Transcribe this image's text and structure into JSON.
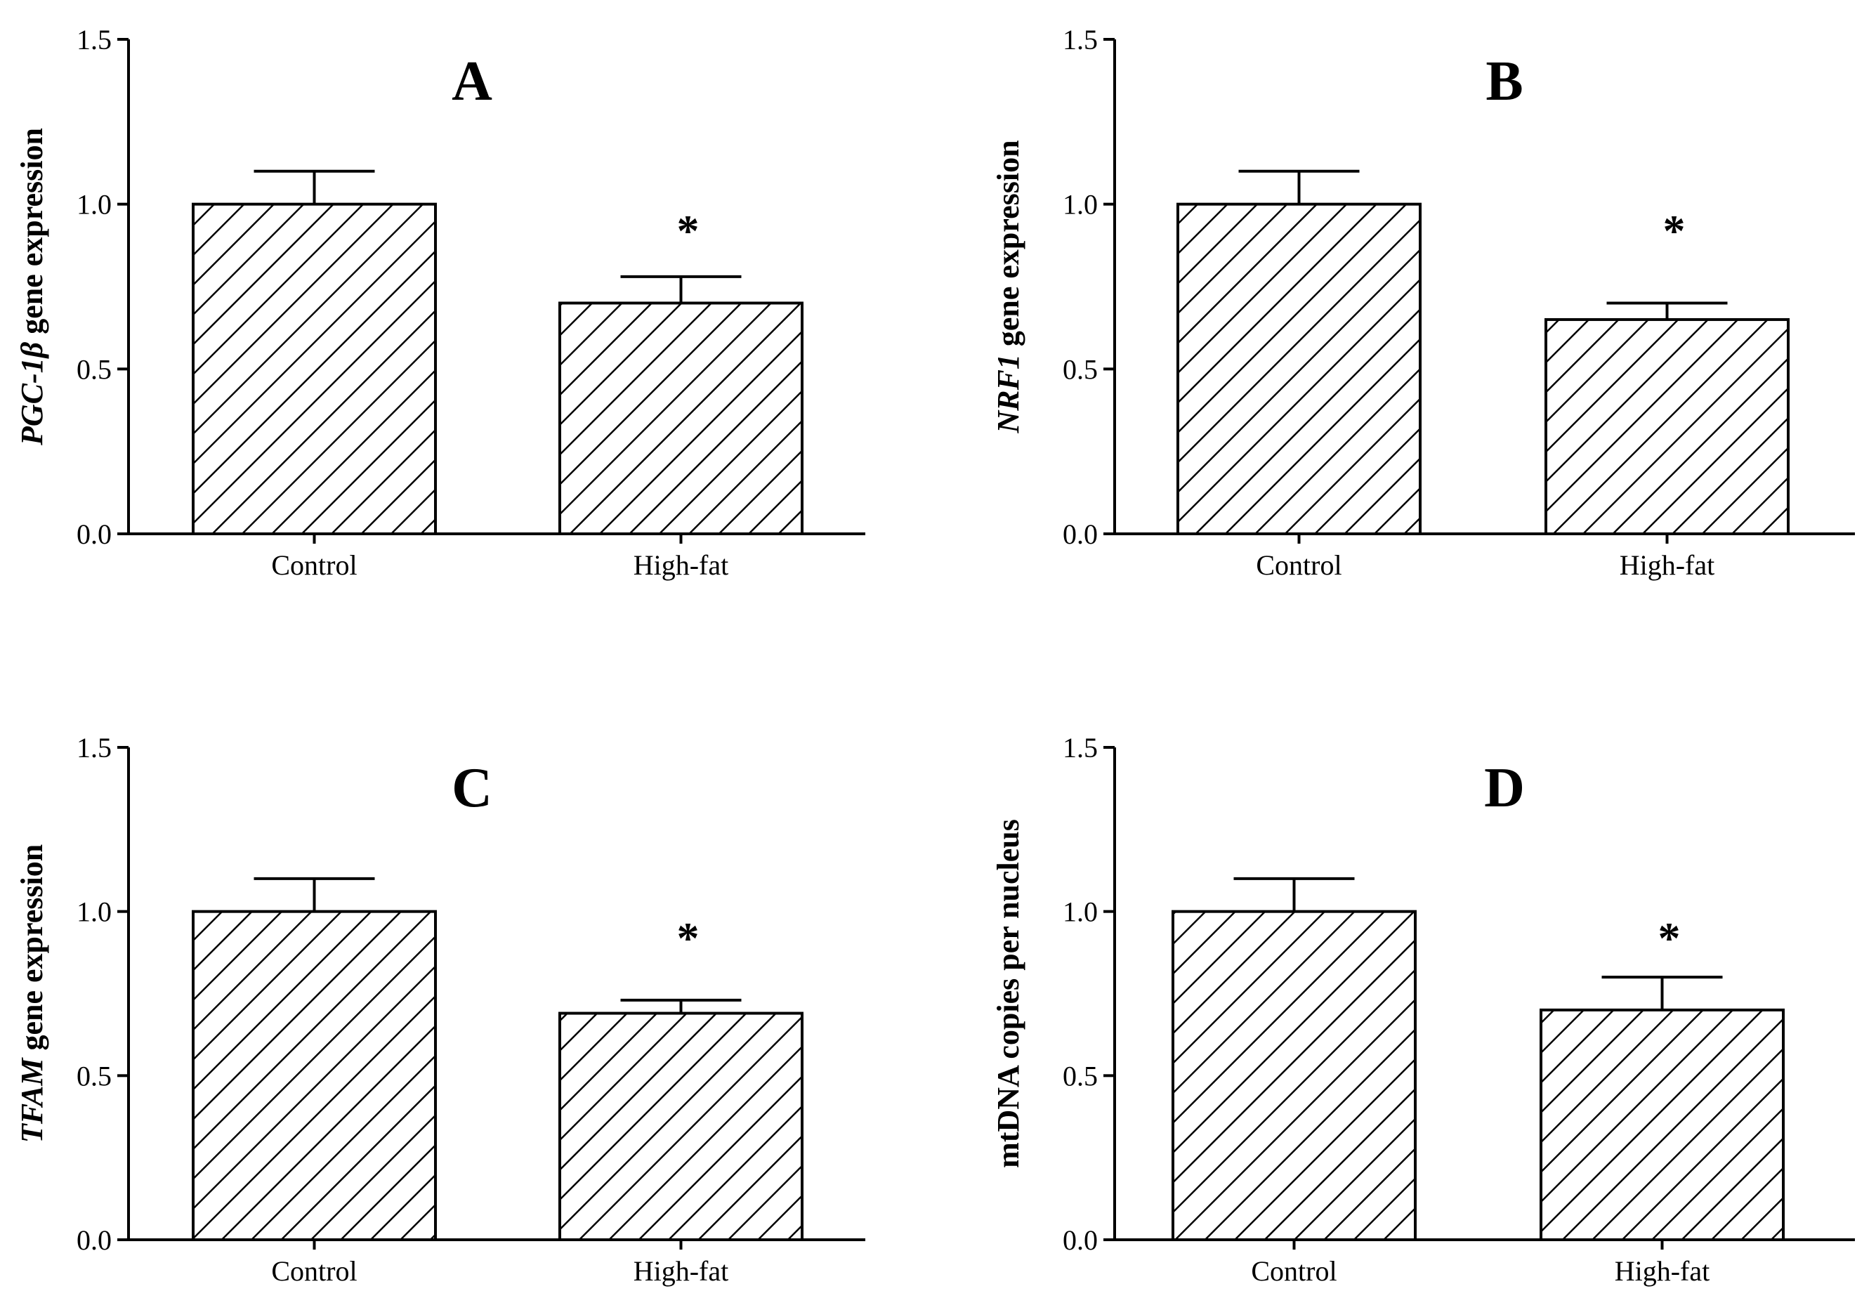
{
  "chart_data": [
    {
      "type": "bar",
      "panel": "A",
      "ylabel_italic": "PGC-1β",
      "ylabel_rest": " gene expression",
      "categories": [
        "Control",
        "High-fat"
      ],
      "values": [
        1.0,
        0.7
      ],
      "errors": [
        0.1,
        0.08
      ],
      "significance": [
        "",
        "*"
      ],
      "ylim": [
        0,
        1.5
      ],
      "yticks": [
        "0.0",
        "0.5",
        "1.0",
        "1.5"
      ],
      "ytick_values": [
        0,
        0.5,
        1.0,
        1.5
      ]
    },
    {
      "type": "bar",
      "panel": "B",
      "ylabel_italic": "NRF1",
      "ylabel_rest": " gene expression",
      "categories": [
        "Control",
        "High-fat"
      ],
      "values": [
        1.0,
        0.65
      ],
      "errors": [
        0.1,
        0.05
      ],
      "significance": [
        "",
        "*"
      ],
      "ylim": [
        0,
        1.5
      ],
      "yticks": [
        "0.0",
        "0.5",
        "1.0",
        "1.5"
      ],
      "ytick_values": [
        0,
        0.5,
        1.0,
        1.5
      ]
    },
    {
      "type": "bar",
      "panel": "C",
      "ylabel_italic": "TFAM",
      "ylabel_rest": " gene expression",
      "categories": [
        "Control",
        "High-fat"
      ],
      "values": [
        1.0,
        0.69
      ],
      "errors": [
        0.1,
        0.04
      ],
      "significance": [
        "",
        "*"
      ],
      "ylim": [
        0,
        1.5
      ],
      "yticks": [
        "0.0",
        "0.5",
        "1.0",
        "1.5"
      ],
      "ytick_values": [
        0,
        0.5,
        1.0,
        1.5
      ]
    },
    {
      "type": "bar",
      "panel": "D",
      "ylabel_italic": "",
      "ylabel_rest": "mtDNA copies per nucleus",
      "categories": [
        "Control",
        "High-fat"
      ],
      "values": [
        1.0,
        0.7
      ],
      "errors": [
        0.1,
        0.1
      ],
      "significance": [
        "",
        "*"
      ],
      "ylim": [
        0,
        1.5
      ],
      "yticks": [
        "0.0",
        "0.5",
        "1.0",
        "1.5"
      ],
      "ytick_values": [
        0,
        0.5,
        1.0,
        1.5
      ]
    }
  ]
}
